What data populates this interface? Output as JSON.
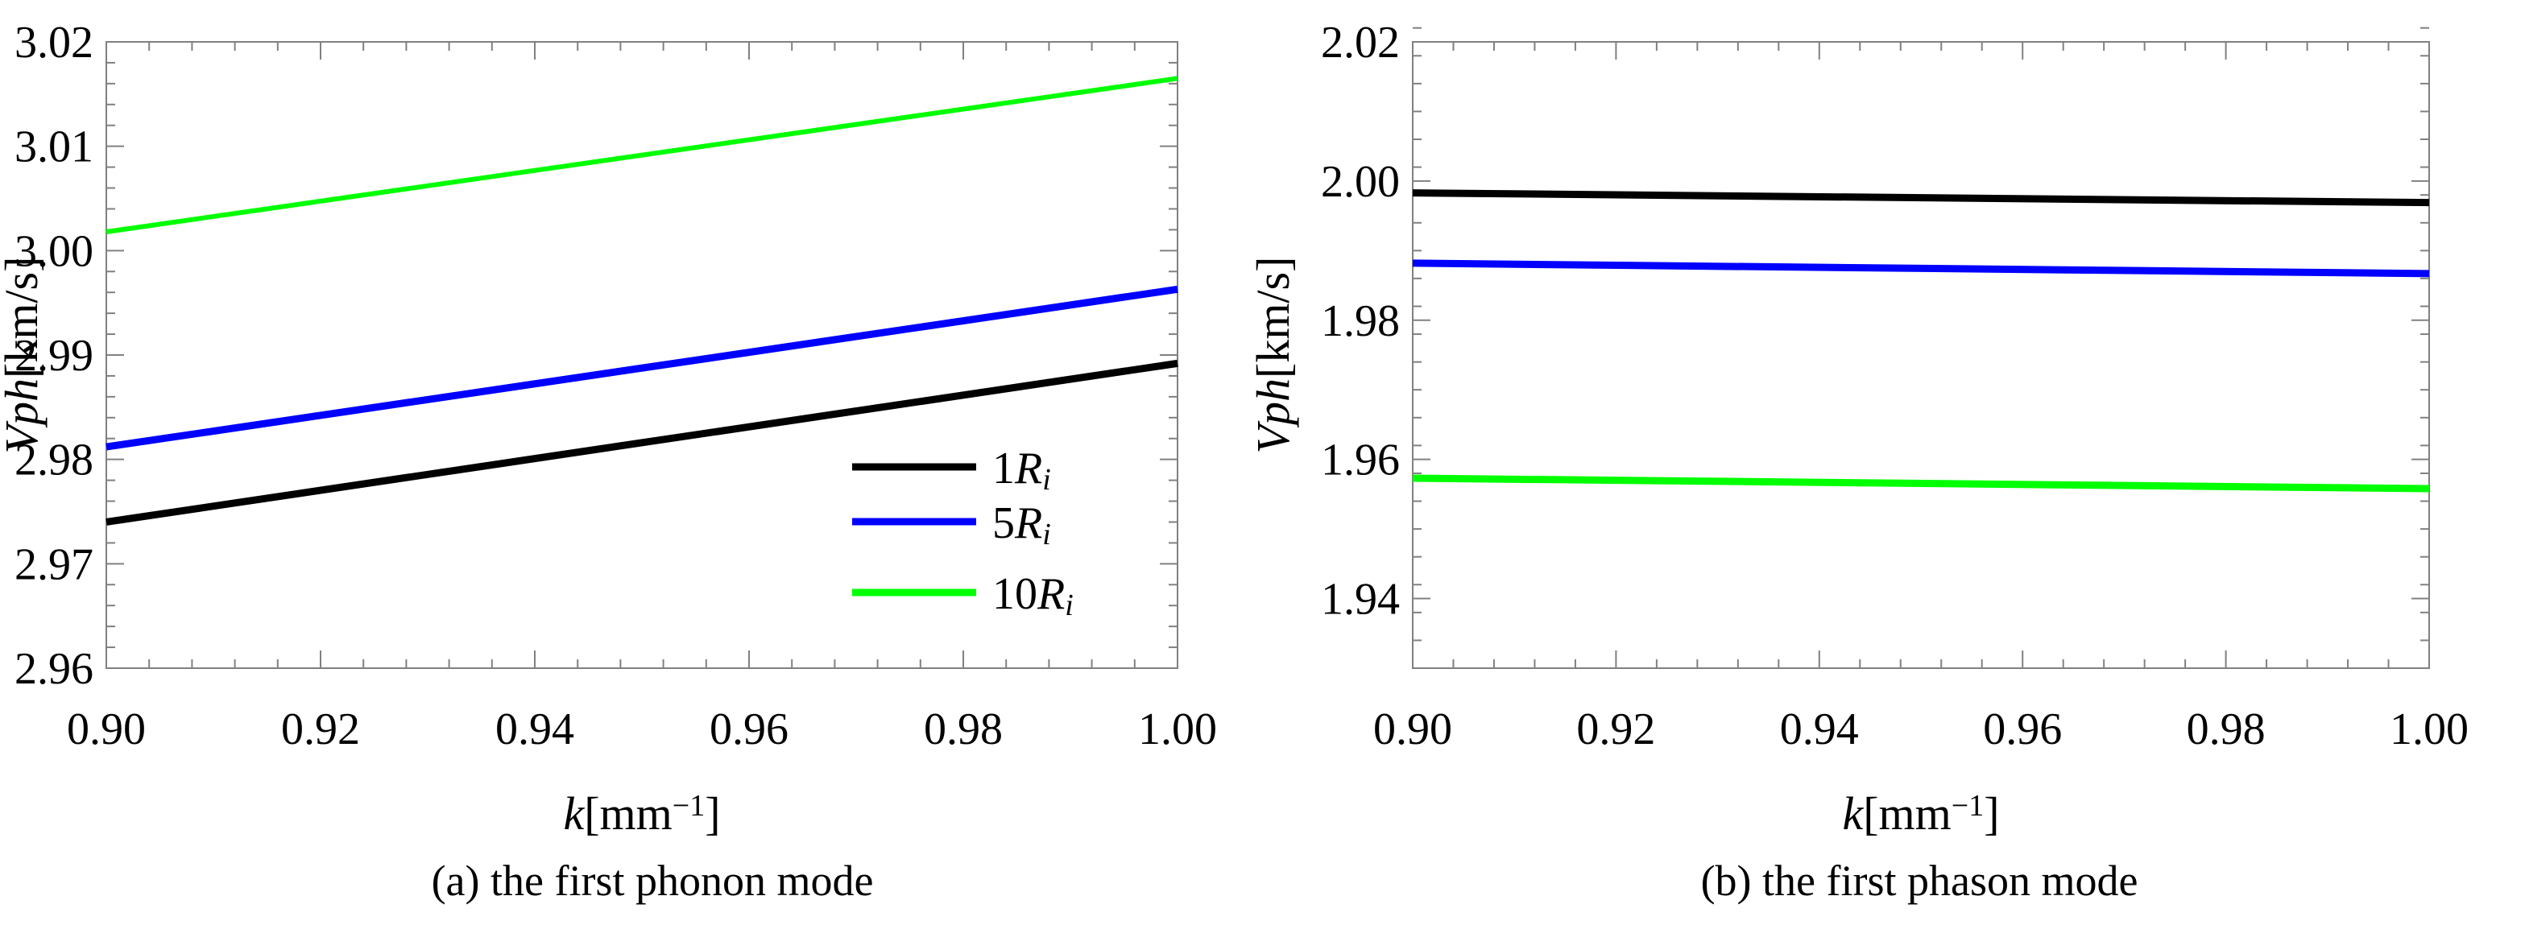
{
  "chart_data": [
    {
      "id": "a",
      "type": "line",
      "caption": "(a) the first phonon mode",
      "xlabel_italic": "k",
      "xlabel_unit": "[mm",
      "xlabel_exp": "−1",
      "xlabel_close": "]",
      "ylabel_italic": "Vph",
      "ylabel_unit": "[km/s]",
      "xlim": [
        0.9,
        1.0
      ],
      "ylim": [
        2.96,
        3.02
      ],
      "xticks": [
        "0.90",
        "0.92",
        "0.94",
        "0.96",
        "0.98",
        "1.00"
      ],
      "yticks": [
        "2.96",
        "2.97",
        "2.98",
        "2.99",
        "3.00",
        "3.01",
        "3.02"
      ],
      "legend": {
        "position": "lower-right",
        "entries": [
          {
            "num": "1",
            "sym": "R",
            "sub": "i",
            "color": "#000000"
          },
          {
            "num": "5",
            "sym": "R",
            "sub": "i",
            "color": "#0000ff"
          },
          {
            "num": "10",
            "sym": "R",
            "sub": "i",
            "color": "#00ff00"
          }
        ]
      },
      "series": [
        {
          "name": "1Ri",
          "color": "#000000",
          "width": 9,
          "x": [
            0.9,
            1.0
          ],
          "y": [
            2.974,
            2.9892
          ]
        },
        {
          "name": "5Ri",
          "color": "#0000ff",
          "width": 9,
          "x": [
            0.9,
            1.0
          ],
          "y": [
            2.9812,
            2.9963
          ]
        },
        {
          "name": "10Ri",
          "color": "#00ff00",
          "width": 6,
          "x": [
            0.9,
            1.0
          ],
          "y": [
            3.0018,
            3.0165
          ]
        }
      ]
    },
    {
      "id": "b",
      "type": "line",
      "caption": "(b) the first phason mode",
      "xlabel_italic": "k",
      "xlabel_unit": "[mm",
      "xlabel_exp": "−1",
      "xlabel_close": "]",
      "ylabel_italic": "Vph",
      "ylabel_unit": "[km/s]",
      "xlim": [
        0.9,
        1.0
      ],
      "ylim": [
        1.93,
        2.02
      ],
      "xticks": [
        "0.90",
        "0.92",
        "0.94",
        "0.96",
        "0.98",
        "1.00"
      ],
      "yticks": [
        "1.94",
        "1.96",
        "1.98",
        "2.00",
        "2.02"
      ],
      "series": [
        {
          "name": "1Ri",
          "color": "#000000",
          "width": 9,
          "x": [
            0.9,
            1.0
          ],
          "y": [
            1.9983,
            1.9969
          ]
        },
        {
          "name": "5Ri",
          "color": "#0000ff",
          "width": 9,
          "x": [
            0.9,
            1.0
          ],
          "y": [
            1.9882,
            1.9867
          ]
        },
        {
          "name": "10Ri",
          "color": "#00ff00",
          "width": 9,
          "x": [
            0.9,
            1.0
          ],
          "y": [
            1.9573,
            1.9558
          ]
        }
      ]
    }
  ]
}
